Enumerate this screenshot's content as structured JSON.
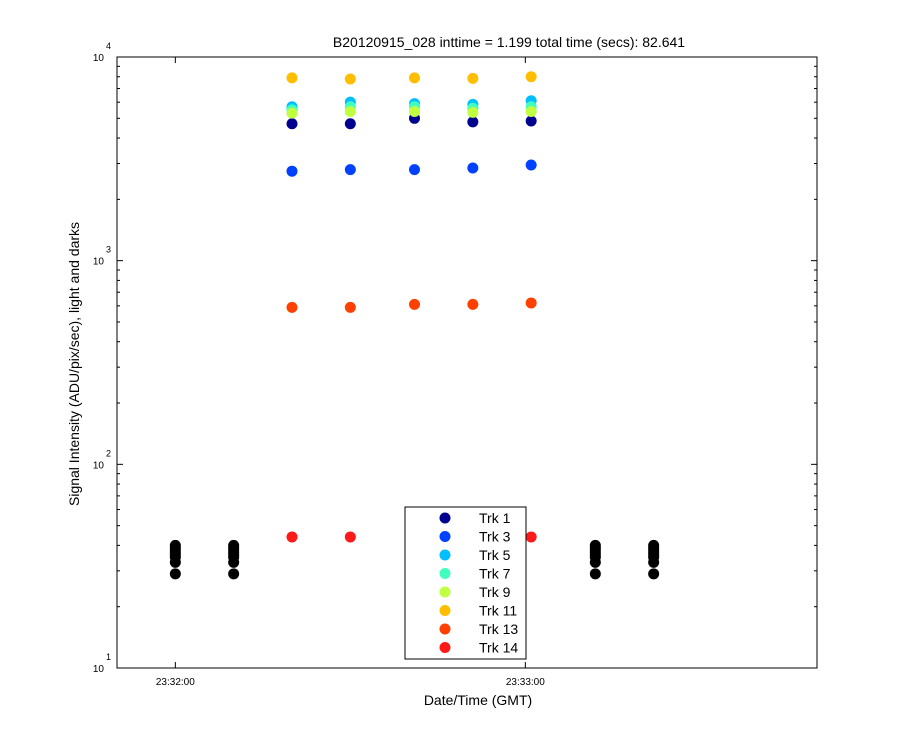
{
  "chart_data": {
    "type": "scatter",
    "title": "B20120915_028 inttime = 1.199 total time (secs): 82.641",
    "xlabel": "Date/Time (GMT)",
    "ylabel": "Signal Intensity (ADU/pix/sec), light and darks",
    "y_scale": "log",
    "ylim": [
      10,
      10000
    ],
    "xlim": [
      "23:31:50",
      "23:33:50"
    ],
    "y_ticks": [
      {
        "base": "10",
        "exp": "1",
        "value": 10
      },
      {
        "base": "10",
        "exp": "2",
        "value": 100
      },
      {
        "base": "10",
        "exp": "3",
        "value": 1000
      },
      {
        "base": "10",
        "exp": "4",
        "value": 10000
      }
    ],
    "x_ticks": [
      {
        "label": "23:32:00",
        "t": "23:32:00"
      },
      {
        "label": "23:33:00",
        "t": "23:33:00"
      }
    ],
    "grid": false,
    "legend_position": "bottom-center",
    "light_x": [
      "23:32:20",
      "23:32:30",
      "23:32:41",
      "23:32:51",
      "23:33:01"
    ],
    "dark_x": [
      "23:32:00",
      "23:32:10",
      "23:33:12",
      "23:33:22"
    ],
    "series": [
      {
        "name": "Trk 1",
        "color": "#00008f",
        "light": [
          4700,
          4700,
          5000,
          4800,
          4850
        ]
      },
      {
        "name": "Trk 3",
        "color": "#0040ff",
        "light": [
          2750,
          2800,
          2800,
          2850,
          2950
        ]
      },
      {
        "name": "Trk 5",
        "color": "#00bfff",
        "light": [
          5700,
          6000,
          5900,
          5850,
          6100
        ]
      },
      {
        "name": "Trk 7",
        "color": "#40ffbf",
        "light": [
          5500,
          5700,
          5700,
          5600,
          5700
        ]
      },
      {
        "name": "Trk 9",
        "color": "#bfff40",
        "light": [
          5300,
          5400,
          5400,
          5350,
          5400
        ]
      },
      {
        "name": "Trk 11",
        "color": "#ffbf00",
        "light": [
          7900,
          7800,
          7900,
          7850,
          8000
        ]
      },
      {
        "name": "Trk 13",
        "color": "#ff4000",
        "light": [
          590,
          590,
          610,
          610,
          620
        ]
      },
      {
        "name": "Trk 14",
        "color": "#ff1a1a",
        "light": [
          44,
          44,
          null,
          null,
          44
        ]
      }
    ],
    "dark_series": {
      "color": "#000000",
      "values": [
        29,
        33,
        35,
        36,
        37,
        38,
        39,
        40
      ]
    }
  }
}
